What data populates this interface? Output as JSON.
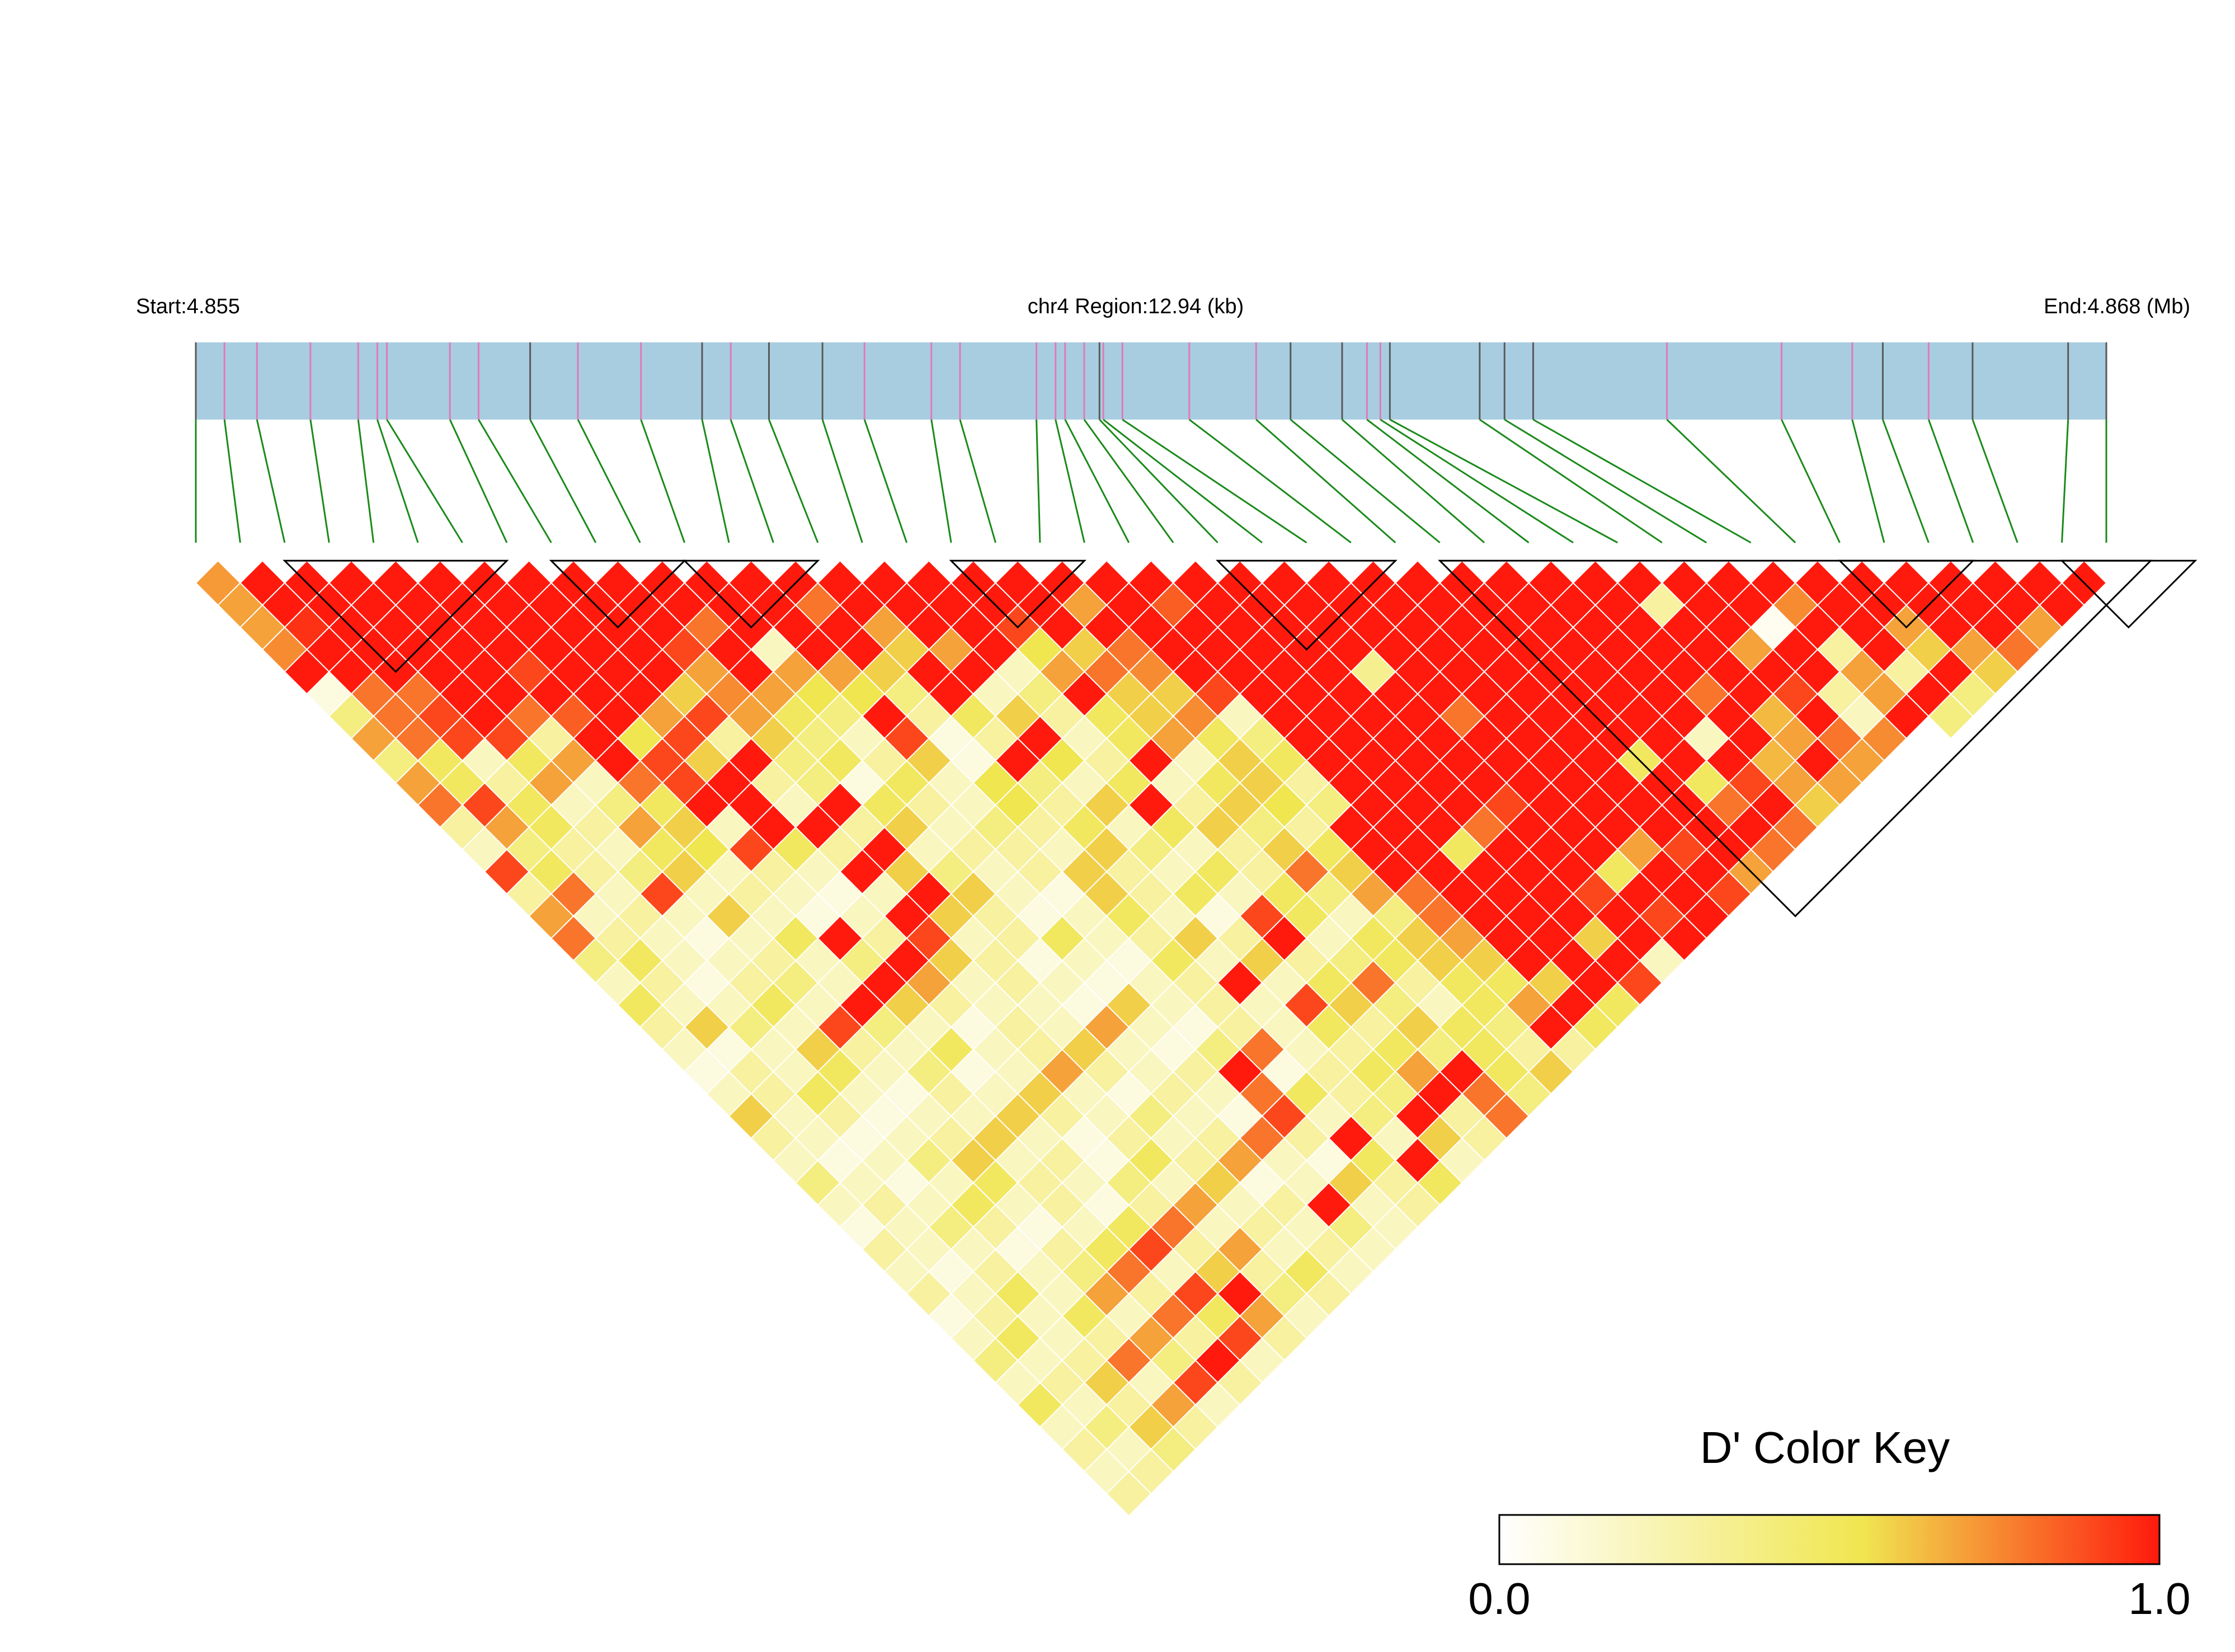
{
  "header": {
    "start_label": "Start:4.855",
    "region_label": "chr4 Region:12.94 (kb)",
    "end_label": "End:4.868 (Mb)"
  },
  "colors": {
    "track_fill": "#a8cde0",
    "snp_line_pink": "#e07ab8",
    "snp_line_gray": "#5a5a5a",
    "connector_green": "#1a8a1a",
    "block_outline": "#000000",
    "cell_border": "#ffffff",
    "ramp": [
      "#ffffff",
      "#f0e650",
      "#ff1a0d"
    ]
  },
  "legend": {
    "title": "D' Color Key",
    "min_label": "0.0",
    "max_label": "1.0"
  },
  "chart_data": {
    "type": "heatmap",
    "description_of_values": "pairwise D' between adjacent-ordered SNPs, estimated visually",
    "chromosome": "chr4",
    "region_start_mb": 4.855,
    "region_end_mb": 4.868,
    "region_length_kb": 12.94,
    "snp_count": 44,
    "snp_positions_frac": [
      0,
      0.015,
      0.032,
      0.06,
      0.085,
      0.095,
      0.1,
      0.133,
      0.148,
      0.175,
      0.2,
      0.233,
      0.265,
      0.28,
      0.3,
      0.328,
      0.35,
      0.385,
      0.4,
      0.44,
      0.45,
      0.455,
      0.465,
      0.473,
      0.475,
      0.485,
      0.52,
      0.555,
      0.573,
      0.6,
      0.613,
      0.62,
      0.625,
      0.672,
      0.685,
      0.7,
      0.77,
      0.83,
      0.867,
      0.883,
      0.907,
      0.93,
      0.98,
      1.0
    ],
    "snp_line_kind": [
      "g",
      "p",
      "p",
      "p",
      "p",
      "p",
      "p",
      "p",
      "p",
      "g",
      "p",
      "p",
      "g",
      "p",
      "g",
      "g",
      "p",
      "p",
      "p",
      "p",
      "p",
      "p",
      "p",
      "g",
      "p",
      "p",
      "p",
      "p",
      "g",
      "g",
      "p",
      "p",
      "g",
      "g",
      "g",
      "g",
      "p",
      "p",
      "p",
      "g",
      "p",
      "g",
      "g",
      "g"
    ],
    "ld_blocks": [
      [
        2,
        7
      ],
      [
        8,
        11
      ],
      [
        11,
        14
      ],
      [
        17,
        20
      ],
      [
        23,
        27
      ],
      [
        28,
        44
      ],
      [
        37,
        40
      ],
      [
        42,
        45
      ]
    ],
    "dprime_by_distance": [
      [
        0.72,
        1,
        1,
        1,
        1,
        1,
        1,
        1,
        1,
        1,
        1,
        1,
        1,
        1,
        1,
        1,
        1,
        1,
        1,
        1,
        1,
        1,
        1,
        1,
        1,
        1,
        1,
        1,
        1,
        1,
        1,
        1,
        1,
        1,
        1,
        1,
        1,
        1,
        1,
        1,
        1,
        1,
        1
      ],
      [
        0.7,
        1,
        1,
        1,
        1,
        1,
        1,
        1,
        1,
        1,
        1,
        1,
        1,
        0.8,
        1,
        1,
        1,
        1,
        1,
        0.7,
        1,
        0.85,
        1,
        1,
        1,
        1,
        1,
        1,
        1,
        1,
        1,
        1,
        0.3,
        1,
        1,
        0.75,
        1,
        1,
        1,
        1,
        1,
        1
      ],
      [
        0.7,
        0.95,
        1,
        1,
        1,
        1,
        1,
        1,
        1,
        1,
        0.8,
        1,
        1,
        1,
        0.7,
        1,
        1,
        0.9,
        1,
        1,
        1,
        1,
        1,
        1,
        1,
        1,
        1,
        1,
        1,
        1,
        1,
        1,
        1,
        1,
        0.05,
        1,
        1,
        0.7,
        1,
        1,
        0.7
      ],
      [
        0.75,
        1,
        1,
        1,
        1,
        1,
        1,
        1,
        1,
        0.9,
        1,
        0.2,
        1,
        1,
        0.6,
        0.7,
        1,
        0.55,
        0.6,
        0.8,
        1,
        1,
        1,
        1,
        1,
        1,
        1,
        1,
        1,
        1,
        1,
        1,
        1,
        0.7,
        1,
        0.3,
        1,
        0.6,
        0.7,
        0.8
      ],
      [
        1,
        1,
        1,
        1,
        1,
        0.9,
        1,
        1,
        1,
        0.7,
        1,
        0.7,
        0.7,
        0.6,
        1,
        1,
        0.2,
        0.7,
        0.8,
        0.75,
        1,
        1,
        1,
        1,
        0.35,
        1,
        1,
        1,
        1,
        1,
        1,
        1,
        1,
        1,
        1,
        0.7,
        0.3,
        1,
        0.6
      ],
      [
        0.1,
        0.8,
        0.8,
        1,
        1,
        1,
        1,
        1,
        0.6,
        0.75,
        0.7,
        0.55,
        0.55,
        0.4,
        1,
        0.2,
        0.4,
        1,
        0.6,
        0.6,
        0.9,
        1,
        1,
        1,
        1,
        1,
        1,
        1,
        1,
        1,
        1,
        0.8,
        1,
        0.9,
        0.3,
        0.7,
        1,
        0.4
      ],
      [
        0.4,
        0.8,
        0.9,
        1,
        0.8,
        0.85,
        1,
        0.7,
        0.9,
        0.7,
        0.5,
        0.4,
        1,
        0.3,
        0.5,
        0.6,
        0.3,
        0.5,
        0.6,
        0.75,
        0.2,
        1,
        1,
        1,
        1,
        0.8,
        1,
        1,
        1,
        1,
        1,
        1,
        0.65,
        1,
        0.2,
        1,
        0.4
      ],
      [
        0.7,
        0.8,
        0.9,
        0.9,
        0.3,
        1,
        0.55,
        0.9,
        0.3,
        0.6,
        0.4,
        0.2,
        0.9,
        0.1,
        0.3,
        1,
        0.2,
        0.5,
        0.7,
        0.5,
        0.4,
        1,
        1,
        1,
        1,
        1,
        1,
        1,
        1,
        1,
        0.2,
        1,
        0.7,
        0.8,
        0.75
      ],
      [
        0.4,
        0.5,
        0.2,
        0.5,
        0.7,
        1,
        0.9,
        0.6,
        1,
        0.4,
        0.5,
        0.3,
        0.6,
        0.1,
        1,
        0.55,
        0.3,
        1,
        0.2,
        0.6,
        0.5,
        1,
        1,
        1,
        1,
        1,
        1,
        1,
        0.5,
        1,
        1,
        0.65,
        1,
        0.7
      ],
      [
        0.7,
        0.5,
        0.3,
        0.7,
        0.2,
        0.8,
        0.9,
        1,
        0.3,
        0.4,
        0.1,
        0.5,
        0.2,
        0.55,
        0.4,
        0.2,
        0.5,
        0.2,
        0.5,
        0.6,
        0.3,
        1,
        1,
        1,
        1,
        1,
        1,
        1,
        1,
        0.5,
        0.9,
        0.7,
        0.7
      ],
      [
        0.8,
        0.9,
        0.5,
        0.2,
        0.4,
        0.5,
        1,
        1,
        0.2,
        1,
        0.5,
        0.3,
        0.2,
        0.55,
        0.3,
        0.6,
        1,
        0.3,
        0.6,
        0.55,
        0.4,
        1,
        1,
        1,
        0.9,
        1,
        1,
        1,
        1,
        0.8,
        1,
        0.6
      ],
      [
        0.3,
        0.7,
        0.5,
        0.3,
        0.7,
        0.6,
        0.2,
        1,
        1,
        0.3,
        0.6,
        0.2,
        0.4,
        0.3,
        0.5,
        0.2,
        0.5,
        0.6,
        0.4,
        0.3,
        1,
        1,
        1,
        0.8,
        1,
        1,
        1,
        1,
        1,
        1,
        0.8
      ],
      [
        0.2,
        0.4,
        0.3,
        0.2,
        0.5,
        0.55,
        0.9,
        0.5,
        0.3,
        1,
        0.2,
        0.3,
        0.3,
        0.2,
        0.6,
        0.4,
        0.2,
        0.3,
        0.6,
        0.5,
        1,
        1,
        0.5,
        1,
        1,
        1,
        0.7,
        0.9,
        1,
        0.8
      ],
      [
        0.9,
        0.5,
        0.3,
        0.4,
        0.6,
        0.2,
        0.3,
        0.2,
        1,
        0.6,
        0.4,
        0.2,
        0.3,
        0.6,
        0.3,
        0.2,
        0.5,
        0.3,
        0.8,
        0.6,
        1,
        1,
        1,
        1,
        1,
        0.5,
        1,
        1,
        0.7
      ],
      [
        0.3,
        0.8,
        0.2,
        0.9,
        0.2,
        0.3,
        0.2,
        0.1,
        0.2,
        1,
        0.6,
        0.2,
        0.1,
        0.6,
        0.3,
        0.5,
        0.2,
        0.5,
        0.4,
        0.7,
        0.8,
        1,
        1,
        1,
        0.9,
        1,
        1,
        0.9
      ],
      [
        0.7,
        0.2,
        0.3,
        0.2,
        0.6,
        0.2,
        0.1,
        0.2,
        1,
        0.6,
        0.3,
        0.1,
        0.2,
        0.5,
        0.2,
        0.1,
        0.9,
        0.5,
        0.2,
        0.4,
        0.8,
        1,
        1,
        1,
        1,
        0.9,
        1
      ],
      [
        0.8,
        0.3,
        0.2,
        0.1,
        0.2,
        0.5,
        1,
        0.3,
        0.9,
        0.2,
        0.3,
        0.5,
        0.2,
        0.3,
        0.6,
        0.3,
        1,
        0.2,
        0.5,
        0.6,
        0.7,
        1,
        1,
        0.6,
        1,
        1
      ],
      [
        0.4,
        0.5,
        0.2,
        0.2,
        0.3,
        0.2,
        0.4,
        1,
        0.6,
        0.3,
        0.1,
        0.2,
        0.1,
        0.5,
        0.2,
        0.6,
        0.3,
        0.4,
        0.5,
        0.6,
        0.6,
        1,
        1,
        1,
        0.2
      ],
      [
        0.2,
        0.3,
        0.1,
        0.3,
        0.4,
        0.2,
        1,
        0.7,
        0.2,
        0.3,
        0.2,
        0.1,
        0.2,
        0.3,
        1,
        0.2,
        0.5,
        0.8,
        0.3,
        0.5,
        0.5,
        0.6,
        1,
        0.9
      ],
      [
        0.5,
        0.2,
        0.2,
        0.5,
        0.2,
        1,
        0.6,
        0.3,
        0.2,
        0.2,
        0.1,
        0.6,
        0.2,
        0.3,
        0.2,
        0.9,
        0.6,
        0.4,
        0.2,
        0.5,
        0.7,
        1,
        0.5
      ],
      [
        0.3,
        0.6,
        0.4,
        0.2,
        0.9,
        0.4,
        0.2,
        0.1,
        0.3,
        0.2,
        0.7,
        0.2,
        0.1,
        0.3,
        0.2,
        0.5,
        0.3,
        0.6,
        0.5,
        0.4,
        1,
        0.5
      ],
      [
        0.2,
        0.1,
        0.2,
        0.6,
        0.3,
        0.2,
        0.5,
        0.2,
        0.3,
        0.6,
        0.2,
        0.1,
        0.4,
        0.8,
        0.2,
        0.3,
        0.5,
        0.4,
        0.5,
        0.3,
        0.3
      ],
      [
        0.1,
        0.3,
        0.2,
        0.5,
        0.2,
        0.4,
        0.1,
        0.2,
        0.7,
        0.3,
        0.2,
        0.3,
        1,
        0.1,
        0.3,
        0.5,
        0.7,
        1,
        0.5,
        0.6
      ],
      [
        0.2,
        0.3,
        0.5,
        0.2,
        0.1,
        0.3,
        0.2,
        0.6,
        0.2,
        0.1,
        0.3,
        0.2,
        0.8,
        0.5,
        0.3,
        0.4,
        1,
        0.8,
        0.4
      ],
      [
        0.6,
        0.2,
        0.3,
        0.1,
        0.2,
        0.2,
        0.6,
        0.3,
        0.2,
        0.4,
        0.2,
        0.1,
        0.9,
        0.2,
        0.4,
        1,
        0.3,
        0.8
      ],
      [
        0.3,
        0.2,
        0.1,
        0.2,
        0.3,
        0.6,
        0.2,
        0.1,
        0.3,
        0.2,
        0.3,
        0.8,
        0.3,
        1,
        0.2,
        0.6,
        0.3
      ],
      [
        0.2,
        0.1,
        0.2,
        0.4,
        0.6,
        0.2,
        0.3,
        0.1,
        0.5,
        0.3,
        0.7,
        0.2,
        0.1,
        0.5,
        1,
        0.2
      ],
      [
        0.4,
        0.2,
        0.1,
        0.2,
        0.5,
        0.3,
        0.2,
        0.4,
        0.2,
        0.6,
        0.1,
        0.2,
        0.6,
        0.3,
        0.5
      ],
      [
        0.2,
        0.3,
        0.2,
        0.5,
        0.2,
        0.3,
        0.1,
        0.3,
        0.7,
        0.2,
        0.3,
        1,
        0.2,
        0.3
      ],
      [
        0.1,
        0.2,
        0.4,
        0.3,
        0.1,
        0.2,
        0.5,
        0.8,
        0.2,
        0.3,
        0.2,
        0.4,
        0.2
      ],
      [
        0.3,
        0.2,
        0.2,
        0.1,
        0.3,
        0.5,
        0.9,
        0.3,
        0.7,
        0.2,
        0.3,
        0.2
      ],
      [
        0.2,
        0.1,
        0.3,
        0.2,
        0.4,
        0.8,
        0.2,
        0.6,
        0.3,
        0.5,
        0.2
      ],
      [
        0.3,
        0.2,
        0.5,
        0.2,
        0.7,
        0.3,
        0.9,
        1,
        0.4,
        0.3
      ],
      [
        0.1,
        0.3,
        0.2,
        0.5,
        0.2,
        0.8,
        0.5,
        0.7,
        0.2
      ],
      [
        0.2,
        0.5,
        0.2,
        0.3,
        0.7,
        0.3,
        0.9,
        0.3
      ],
      [
        0.4,
        0.2,
        0.3,
        0.8,
        0.4,
        1,
        0.2
      ],
      [
        0.2,
        0.3,
        0.6,
        0.2,
        0.9,
        0.3
      ],
      [
        0.5,
        0.2,
        0.3,
        0.7,
        0.2
      ],
      [
        0.2,
        0.4,
        0.6,
        0.3
      ],
      [
        0.3,
        0.2,
        0.4
      ],
      [
        0.2,
        0.3
      ],
      [
        0.3
      ]
    ]
  }
}
